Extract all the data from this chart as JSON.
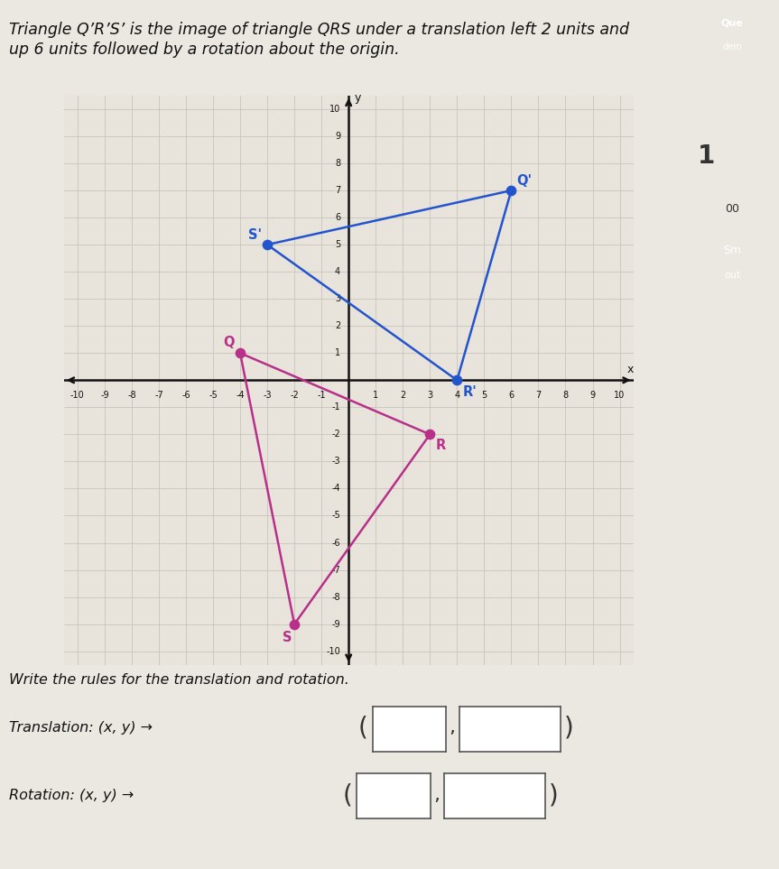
{
  "title_line1": "Triangle Q’R’S’ is the image of triangle QRS under a translation left 2 units and",
  "title_line2": "up 6 units followed by a rotation about the origin.",
  "title_fontsize": 12.5,
  "grid_range": [
    -10,
    10
  ],
  "triangle_QRS": {
    "Q": [
      -4,
      1
    ],
    "R": [
      3,
      -2
    ],
    "S": [
      -2,
      -9
    ]
  },
  "triangle_QpRpSp": {
    "Qp": [
      6,
      7
    ],
    "Rp": [
      4,
      0
    ],
    "Sp": [
      -3,
      5
    ]
  },
  "color_QRS": "#b8308a",
  "color_QpRpSp": "#2255cc",
  "dot_size": 55,
  "label_fontsize": 10.5,
  "bottom_text": "Write the rules for the translation and rotation.",
  "translation_label": "Translation: (x, y) →",
  "rotation_label": "Rotation: (x, y) →",
  "background_color": "#ebe8e2",
  "grid_bg_color": "#e8e4dc",
  "axis_color": "#111111",
  "grid_color": "#c8c4bc",
  "ui_blue_color": "#1565c0",
  "ui_green_color": "#2e7d32",
  "ui_red_color": "#c62828",
  "ui_teal_color": "#00796b"
}
